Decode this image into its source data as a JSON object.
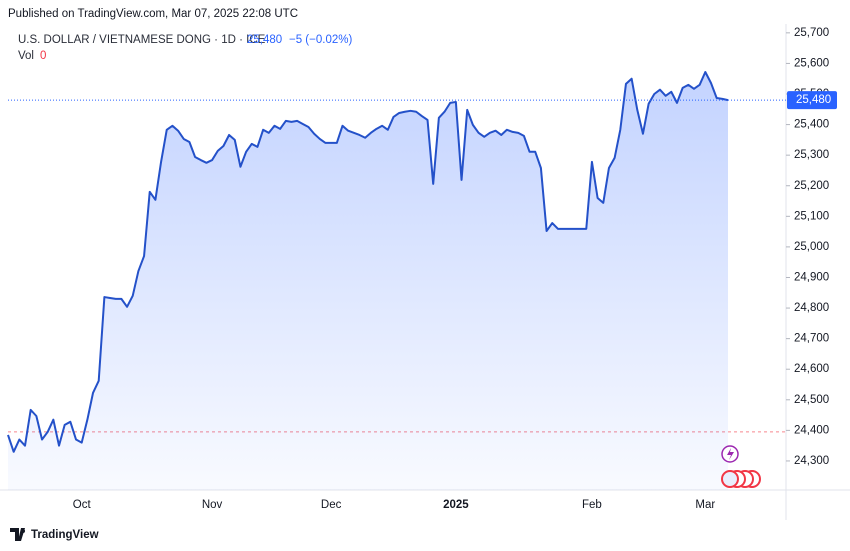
{
  "header": {
    "published": "Published on TradingView.com, Mar 07, 2025 22:08 UTC",
    "brand": "TradingView"
  },
  "chart_data": {
    "type": "area",
    "symbol": "U.S. DOLLAR / VIETNAMESE DONG · 1D · ICE",
    "last_text": "25,480",
    "change": "−5 (−0.02%)",
    "volume_label": "Vol",
    "volume": 0,
    "last_price": {
      "value": 25480,
      "label": "25,480"
    },
    "reference_line": 24395,
    "categories": [
      null,
      null,
      null,
      null,
      null,
      null,
      null,
      null,
      null,
      null,
      null,
      null,
      null,
      "Oct",
      null,
      null,
      null,
      null,
      null,
      null,
      null,
      null,
      null,
      null,
      null,
      null,
      null,
      null,
      null,
      null,
      null,
      null,
      null,
      null,
      null,
      null,
      "Nov",
      null,
      null,
      null,
      null,
      null,
      null,
      null,
      null,
      null,
      null,
      null,
      null,
      null,
      null,
      null,
      null,
      null,
      null,
      null,
      null,
      "Dec",
      null,
      null,
      null,
      null,
      null,
      null,
      null,
      null,
      null,
      null,
      null,
      null,
      null,
      null,
      null,
      null,
      null,
      null,
      null,
      null,
      null,
      "2025",
      null,
      null,
      null,
      null,
      null,
      null,
      null,
      null,
      null,
      null,
      null,
      null,
      null,
      null,
      null,
      null,
      null,
      null,
      null,
      null,
      null,
      null,
      null,
      "Feb",
      null,
      null,
      null,
      null,
      null,
      null,
      null,
      null,
      null,
      null,
      null,
      null,
      null,
      null,
      null,
      null,
      null,
      null,
      null,
      "Mar",
      null,
      null,
      null,
      null
    ],
    "series": [
      {
        "color": "#2451c9",
        "values": [
          24385,
          24330,
          24370,
          24350,
          24467,
          24447,
          24370,
          24395,
          24435,
          24350,
          24418,
          24428,
          24370,
          24360,
          24435,
          24523,
          24562,
          24836,
          24833,
          24830,
          24830,
          24804,
          24840,
          24921,
          24970,
          25180,
          25154,
          25278,
          25383,
          25396,
          25380,
          25353,
          25343,
          25294,
          25284,
          25275,
          25284,
          25314,
          25330,
          25366,
          25350,
          25262,
          25311,
          25337,
          25327,
          25383,
          25373,
          25396,
          25386,
          25412,
          25409,
          25412,
          25402,
          25392,
          25370,
          25353,
          25340,
          25340,
          25340,
          25396,
          25380,
          25373,
          25366,
          25357,
          25373,
          25386,
          25396,
          25383,
          25425,
          25438,
          25442,
          25445,
          25442,
          25428,
          25415,
          25206,
          25422,
          25442,
          25471,
          25474,
          25219,
          25448,
          25399,
          25373,
          25360,
          25373,
          25380,
          25366,
          25383,
          25376,
          25373,
          25363,
          25311,
          25311,
          25258,
          25052,
          25078,
          25059,
          25059,
          25059,
          25059,
          25059,
          25059,
          25278,
          25160,
          25144,
          25258,
          25291,
          25383,
          25533,
          25550,
          25448,
          25370,
          25468,
          25500,
          25514,
          25494,
          25507,
          25471,
          25520,
          25530,
          25517,
          25530,
          25572,
          25536,
          25487,
          25484,
          25480
        ]
      }
    ],
    "ylim": [
      24205,
      25742
    ],
    "yticks": [
      {
        "value": 24300,
        "label": "24,300"
      },
      {
        "value": 24400,
        "label": "24,400"
      },
      {
        "value": 24500,
        "label": "24,500"
      },
      {
        "value": 24600,
        "label": "24,600"
      },
      {
        "value": 24700,
        "label": "24,700"
      },
      {
        "value": 24800,
        "label": "24,800"
      },
      {
        "value": 24900,
        "label": "24,900"
      },
      {
        "value": 25000,
        "label": "25,000"
      },
      {
        "value": 25100,
        "label": "25,100"
      },
      {
        "value": 25200,
        "label": "25,200"
      },
      {
        "value": 25300,
        "label": "25,300"
      },
      {
        "value": 25400,
        "label": "25,400"
      },
      {
        "value": 25500,
        "label": "25,500"
      },
      {
        "value": 25600,
        "label": "25,600"
      },
      {
        "value": 25700,
        "label": "25,700"
      }
    ],
    "grid": false
  }
}
